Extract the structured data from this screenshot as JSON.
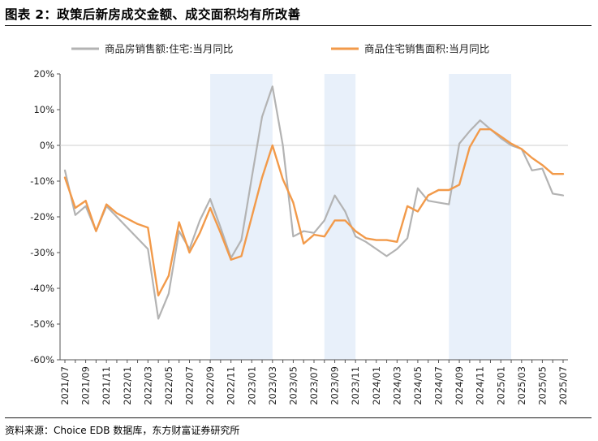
{
  "figure": {
    "title": "图表 2：政策后新房成交金额、成交面积均有所改善",
    "source": "资料来源：Choice EDB 数据库，东方财富证券研究所"
  },
  "chart_data": {
    "type": "line",
    "title": "图表 2：政策后新房成交金额、成交面积均有所改善",
    "xlabel": "",
    "ylabel": "",
    "ylim": [
      -60,
      20
    ],
    "yticks": [
      20,
      10,
      0,
      -10,
      -20,
      -30,
      -40,
      -50,
      -60
    ],
    "ytick_labels": [
      "20%",
      "10%",
      "0%",
      "-10%",
      "-20%",
      "-30%",
      "-40%",
      "-50%",
      "-60%"
    ],
    "legend_position": "top",
    "grid": false,
    "months": [
      "2021/07",
      "2021/08",
      "2021/09",
      "2021/10",
      "2021/11",
      "2021/12",
      "2022/01",
      "2022/02",
      "2022/03",
      "2022/04",
      "2022/05",
      "2022/06",
      "2022/07",
      "2022/08",
      "2022/09",
      "2022/10",
      "2022/11",
      "2022/12",
      "2023/01",
      "2023/02",
      "2023/03",
      "2023/04",
      "2023/05",
      "2023/06",
      "2023/07",
      "2023/08",
      "2023/09",
      "2023/10",
      "2023/11",
      "2023/12",
      "2024/01",
      "2024/02",
      "2024/03",
      "2024/04",
      "2024/05",
      "2024/06",
      "2024/07",
      "2024/08",
      "2024/09",
      "2024/10",
      "2024/11",
      "2024/12",
      "2025/01",
      "2025/02",
      "2025/03",
      "2025/04",
      "2025/05",
      "2025/06",
      "2025/07"
    ],
    "x_tick_labels": [
      "2021/07",
      "2021/09",
      "2021/11",
      "2022/01",
      "2022/03",
      "2022/05",
      "2022/07",
      "2022/09",
      "2022/11",
      "2023/01",
      "2023/03",
      "2023/05",
      "2023/07",
      "2023/09",
      "2023/11",
      "2024/01",
      "2024/03",
      "2024/05",
      "2024/07",
      "2024/09",
      "2024/11",
      "2025/01",
      "2025/03",
      "2025/05",
      "2025/07"
    ],
    "shaded_periods": [
      {
        "start": "2022/09",
        "end": "2023/03"
      },
      {
        "start": "2023/08",
        "end": "2023/11"
      },
      {
        "start": "2024/08",
        "end": "2025/02"
      }
    ],
    "series": [
      {
        "name": "商品房销售额:住宅:当月同比",
        "color": "#b3b3b3",
        "values": [
          -7,
          -19.5,
          -17,
          -24,
          -17,
          -20,
          null,
          -26,
          -29,
          -48.5,
          -41.5,
          -24,
          -29,
          -21,
          -15,
          -23,
          -31.5,
          -26.5,
          -9,
          8,
          16.5,
          0,
          -25.5,
          -24,
          -24.5,
          -21,
          -14,
          -18.5,
          -25.5,
          -27,
          -29,
          -31,
          -29,
          -26,
          -12,
          -15.5,
          -16,
          -16.5,
          0.5,
          4,
          7,
          4.5,
          2,
          0,
          -1,
          -7,
          -6.5,
          -13.5,
          -14
        ]
      },
      {
        "name": "商品住宅销售面积:当月同比",
        "color": "#f29a4a",
        "values": [
          -9,
          -17.5,
          -15.5,
          -24,
          -16.5,
          -19,
          null,
          -22,
          -23,
          -42,
          -36.5,
          -21.5,
          -30,
          -24.5,
          -17.5,
          -24.5,
          -32,
          -31,
          -20,
          -9,
          0,
          -9.5,
          -16,
          -27.5,
          -25,
          -25.5,
          -21,
          -21,
          -24,
          -26,
          -26.5,
          -26.5,
          -27,
          -17,
          -18.5,
          -14,
          -12.5,
          -12.5,
          -11,
          -0.5,
          4.5,
          4.5,
          2.5,
          0.5,
          -1,
          -3.5,
          -5.5,
          -8,
          -8
        ]
      }
    ]
  }
}
